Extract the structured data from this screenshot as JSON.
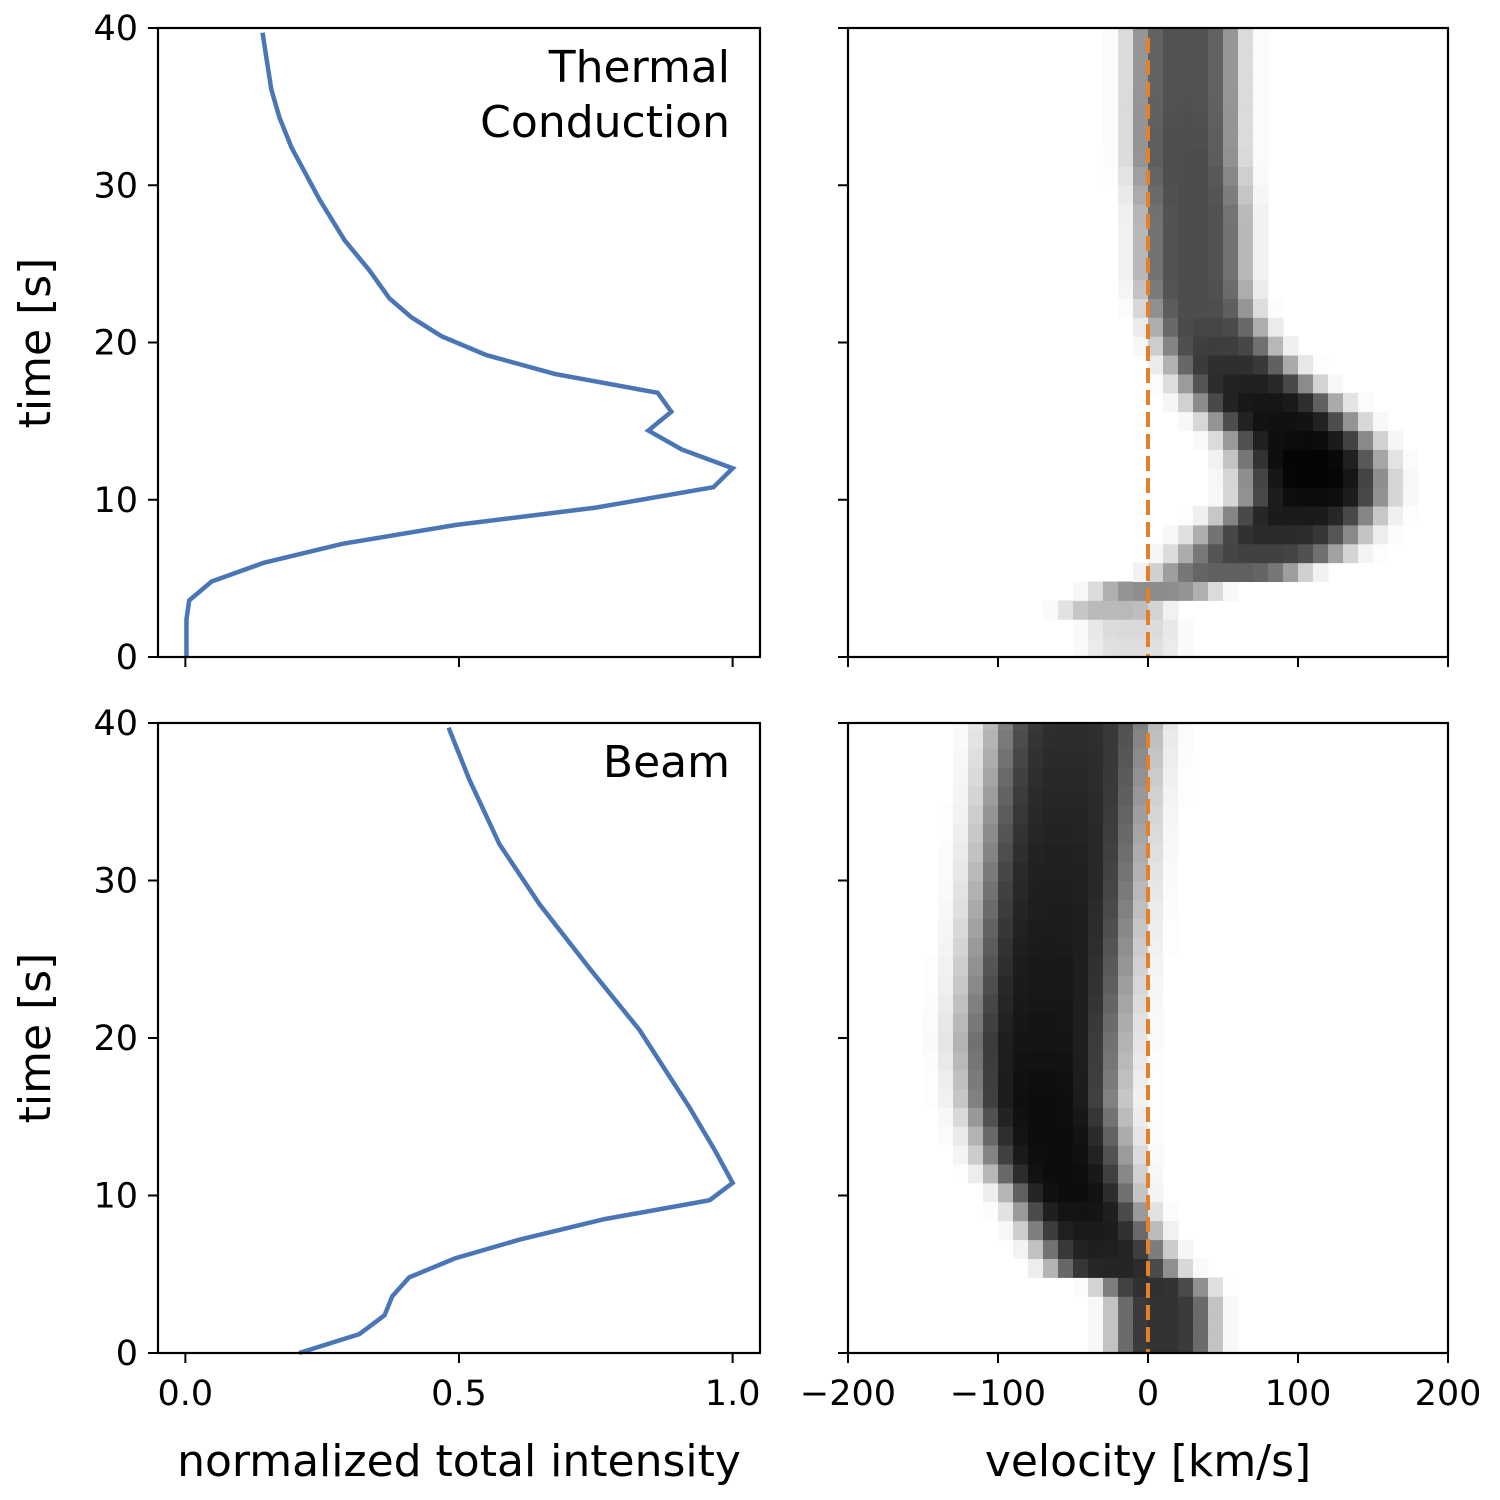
{
  "colors": {
    "line": "#4a76b5",
    "zero_line": "#e38128",
    "heatmap": "greys"
  },
  "chart_data": [
    {
      "type": "line",
      "panel": "top-left",
      "annotation": "Thermal\nConduction",
      "annotation_lines": [
        "Thermal",
        "Conduction"
      ],
      "xlabel": "",
      "ylabel": "time [s]",
      "xlim": [
        -0.05,
        1.05
      ],
      "ylim": [
        0,
        40
      ],
      "xticks": [
        0.0,
        0.5,
        1.0
      ],
      "xtick_labels": [],
      "yticks": [
        0,
        10,
        20,
        30,
        40
      ],
      "ytick_labels": [
        "0",
        "10",
        "20",
        "30",
        "40"
      ],
      "x": [
        0.002,
        0.002,
        0.007,
        0.048,
        0.144,
        0.287,
        0.495,
        0.75,
        0.965,
        1.0,
        0.907,
        0.846,
        0.888,
        0.863,
        0.675,
        0.55,
        0.468,
        0.413,
        0.373,
        0.336,
        0.291,
        0.245,
        0.194,
        0.172,
        0.157,
        0.141
      ],
      "y": [
        0,
        2.4,
        3.6,
        4.8,
        6.0,
        7.2,
        8.4,
        9.5,
        10.8,
        12.0,
        13.2,
        14.4,
        15.6,
        16.8,
        18.0,
        19.2,
        20.4,
        21.6,
        22.8,
        24.6,
        26.5,
        29.1,
        32.4,
        34.3,
        36.1,
        39.7
      ]
    },
    {
      "type": "heatmap",
      "panel": "top-right",
      "xlim": [
        -200,
        200
      ],
      "ylim": [
        0,
        40
      ],
      "xticks": [
        -200,
        -100,
        0,
        100,
        200
      ],
      "xtick_labels": [],
      "yticks": [
        0,
        10,
        20,
        30,
        40
      ],
      "zero_line": 0,
      "profile_columns": [
        "time",
        "center_velocity",
        "width",
        "peak"
      ],
      "profile": [
        [
          0,
          -10,
          25,
          0.12
        ],
        [
          2,
          -10,
          25,
          0.15
        ],
        [
          3.6,
          -30,
          30,
          0.35
        ],
        [
          4.8,
          40,
          35,
          0.55
        ],
        [
          6,
          70,
          45,
          0.7
        ],
        [
          8,
          90,
          45,
          0.85
        ],
        [
          10,
          110,
          40,
          0.95
        ],
        [
          12,
          110,
          40,
          1.0
        ],
        [
          14,
          100,
          40,
          0.95
        ],
        [
          16,
          80,
          40,
          0.92
        ],
        [
          18,
          60,
          35,
          0.85
        ],
        [
          20,
          45,
          32,
          0.75
        ],
        [
          22,
          35,
          30,
          0.7
        ],
        [
          24,
          30,
          30,
          0.7
        ],
        [
          28,
          30,
          30,
          0.7
        ],
        [
          32,
          25,
          30,
          0.7
        ],
        [
          36,
          25,
          30,
          0.68
        ],
        [
          40,
          25,
          30,
          0.68
        ]
      ]
    },
    {
      "type": "line",
      "panel": "bottom-left",
      "annotation": "Beam",
      "annotation_lines": [
        "Beam"
      ],
      "xlabel": "normalized total intensity",
      "ylabel": "time [s]",
      "xlim": [
        -0.05,
        1.05
      ],
      "ylim": [
        0,
        40
      ],
      "xticks": [
        0.0,
        0.5,
        1.0
      ],
      "xtick_labels": [
        "0.0",
        "0.5",
        "1.0"
      ],
      "yticks": [
        0,
        10,
        20,
        30,
        40
      ],
      "ytick_labels": [
        "0",
        "10",
        "20",
        "30",
        "40"
      ],
      "x": [
        0.208,
        0.318,
        0.364,
        0.378,
        0.409,
        0.492,
        0.611,
        0.766,
        0.958,
        1.0,
        0.967,
        0.921,
        0.83,
        0.739,
        0.647,
        0.574,
        0.519,
        0.481
      ],
      "y": [
        0,
        1.2,
        2.4,
        3.6,
        4.8,
        6.0,
        7.2,
        8.5,
        9.7,
        10.8,
        12.9,
        15.6,
        20.5,
        24.4,
        28.5,
        32.3,
        36.4,
        39.7
      ]
    },
    {
      "type": "heatmap",
      "panel": "bottom-right",
      "xlabel": "velocity [km/s]",
      "xlim": [
        -200,
        200
      ],
      "ylim": [
        0,
        40
      ],
      "xticks": [
        -200,
        -100,
        0,
        100,
        200
      ],
      "xtick_labels": [
        "−200",
        "−100",
        "0",
        "100",
        "200"
      ],
      "yticks": [
        0,
        10,
        20,
        30,
        40
      ],
      "zero_line": 0,
      "profile_columns": [
        "time",
        "center_velocity",
        "width",
        "peak"
      ],
      "profile": [
        [
          0,
          10,
          28,
          0.8
        ],
        [
          4,
          10,
          28,
          0.8
        ],
        [
          5,
          -20,
          35,
          0.85
        ],
        [
          8,
          -40,
          35,
          0.9
        ],
        [
          10,
          -50,
          35,
          0.95
        ],
        [
          12,
          -60,
          40,
          0.95
        ],
        [
          16,
          -70,
          42,
          0.95
        ],
        [
          20,
          -70,
          45,
          0.92
        ],
        [
          30,
          -60,
          45,
          0.88
        ],
        [
          40,
          -50,
          45,
          0.82
        ]
      ]
    }
  ]
}
